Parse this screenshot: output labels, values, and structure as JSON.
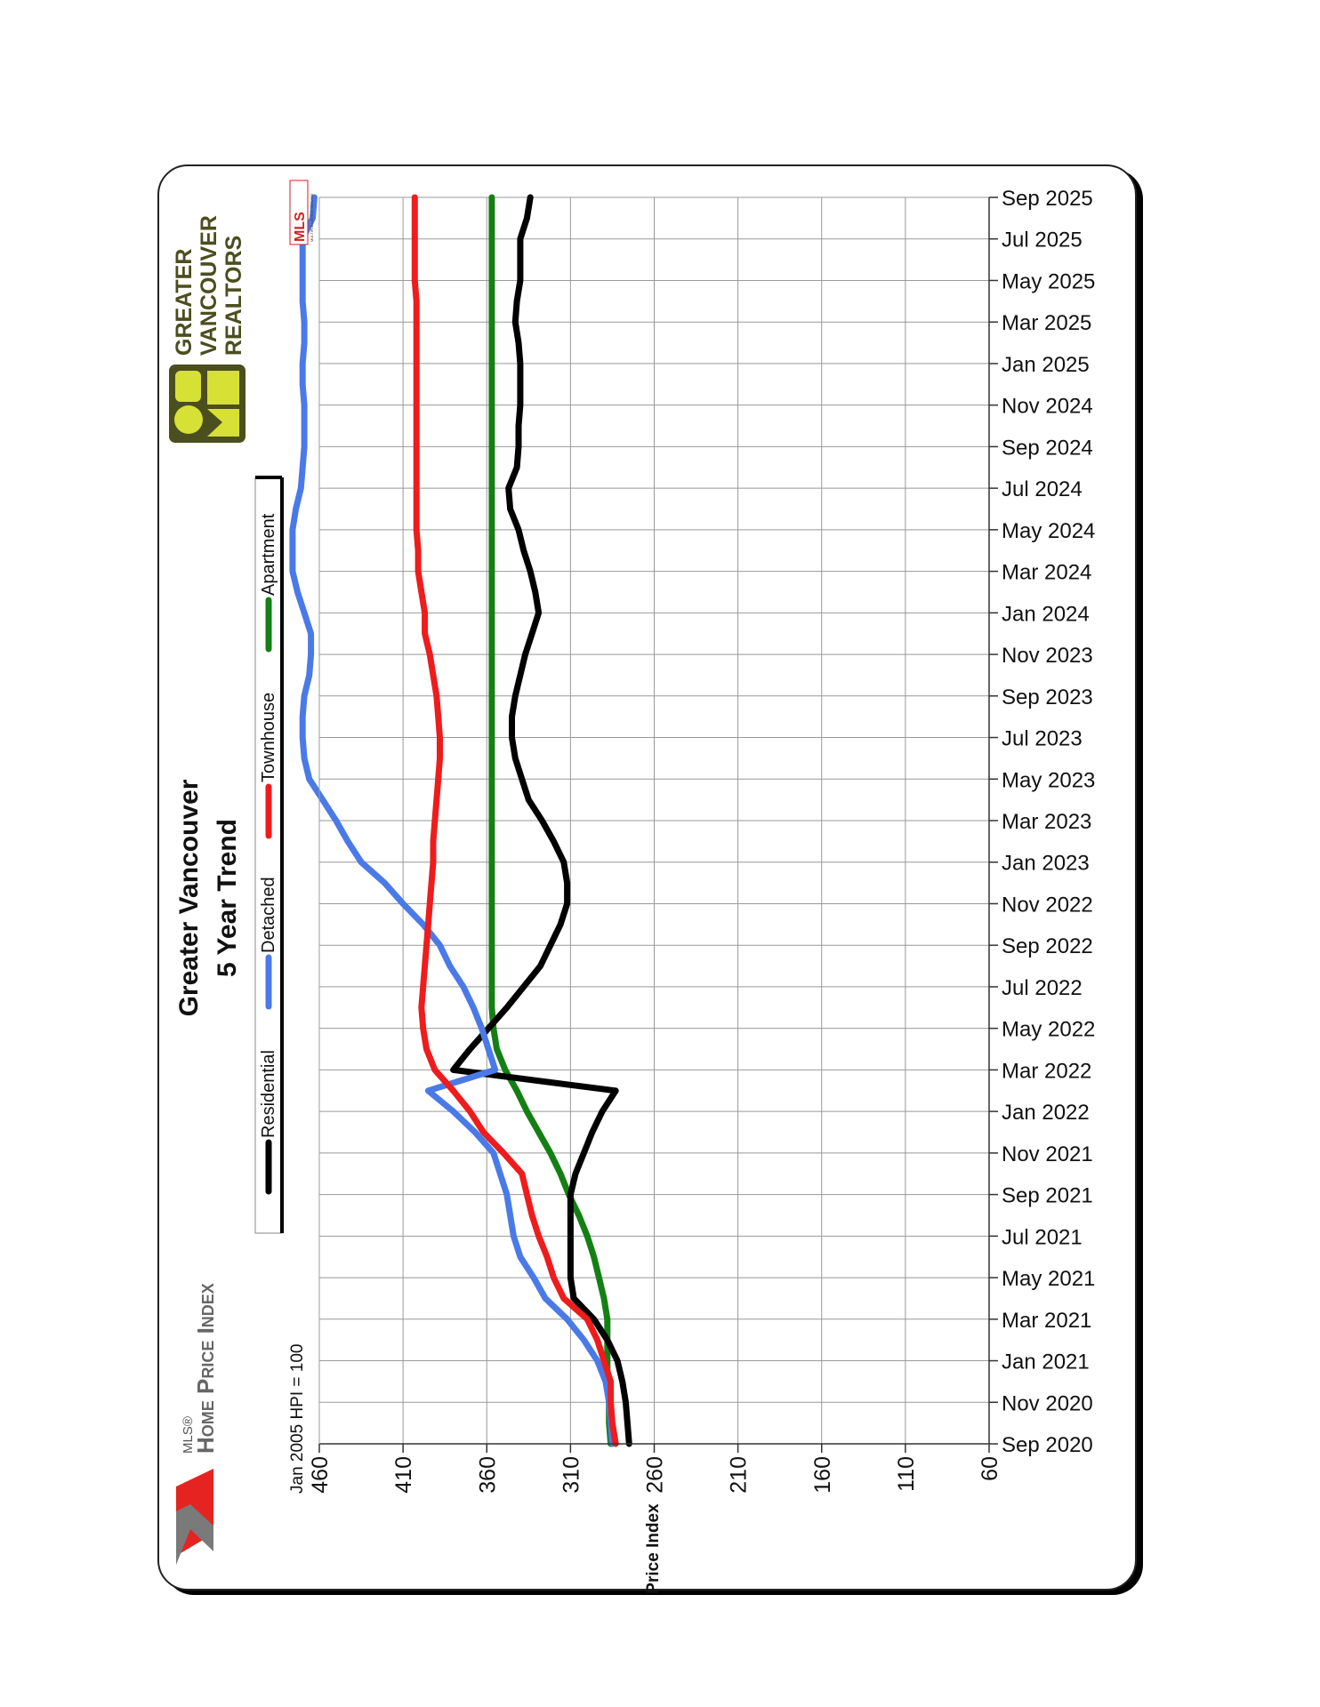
{
  "chart_data": {
    "type": "line",
    "title": "Greater Vancouver",
    "subtitle": "5 Year Trend",
    "ylabel": "Price Index",
    "base_note": "Jan 2005 HPI = 100",
    "ylim": [
      60,
      460
    ],
    "yticks": [
      "460",
      "410",
      "360",
      "310",
      "260",
      "210",
      "160",
      "110",
      "60"
    ],
    "x_labels": [
      "Sep 2025",
      "Jul 2025",
      "May 2025",
      "Mar 2025",
      "Jan 2025",
      "Nov 2024",
      "Sep 2024",
      "Jul 2024",
      "May 2024",
      "Mar 2024",
      "Jan 2024",
      "Nov 2023",
      "Sep 2023",
      "Jul 2023",
      "May 2023",
      "Mar 2023",
      "Jan 2023",
      "Nov 2022",
      "Sep 2022",
      "Jul 2022",
      "May 2022",
      "Mar 2022",
      "Jan 2022",
      "Nov 2021",
      "Sep 2021",
      "Jul 2021",
      "May 2021",
      "Mar 2021",
      "Jan 2021",
      "Nov 2020",
      "Sep 2020"
    ],
    "x": [
      "Sep 2020",
      "Oct 2020",
      "Nov 2020",
      "Dec 2020",
      "Jan 2021",
      "Feb 2021",
      "Mar 2021",
      "Apr 2021",
      "May 2021",
      "Jun 2021",
      "Jul 2021",
      "Aug 2021",
      "Sep 2021",
      "Oct 2021",
      "Nov 2021",
      "Dec 2021",
      "Jan 2022",
      "Feb 2022",
      "Mar 2022",
      "Apr 2022",
      "May 2022",
      "Jun 2022",
      "Jul 2022",
      "Aug 2022",
      "Sep 2022",
      "Oct 2022",
      "Nov 2022",
      "Dec 2022",
      "Jan 2023",
      "Feb 2023",
      "Mar 2023",
      "Apr 2023",
      "May 2023",
      "Jun 2023",
      "Jul 2023",
      "Aug 2023",
      "Sep 2023",
      "Oct 2023",
      "Nov 2023",
      "Dec 2023",
      "Jan 2024",
      "Feb 2024",
      "Mar 2024",
      "Apr 2024",
      "May 2024",
      "Jun 2024",
      "Jul 2024",
      "Aug 2024",
      "Sep 2024",
      "Oct 2024",
      "Nov 2024",
      "Dec 2024",
      "Jan 2025",
      "Feb 2025",
      "Mar 2025",
      "Apr 2025",
      "May 2025",
      "Jun 2025",
      "Jul 2025",
      "Aug 2025",
      "Sep 2025"
    ],
    "legend": [
      "Residential",
      "Detached",
      "Townhouse",
      "Apartment"
    ],
    "grid": true,
    "series": [
      {
        "name": "Residential",
        "color": "#000000",
        "values": [
          275,
          276,
          277,
          279,
          282,
          288,
          296,
          308,
          310,
          310,
          310,
          310,
          310,
          307,
          302,
          297,
          291,
          283,
          380,
          370,
          359,
          348,
          338,
          328,
          322,
          316,
          312,
          312,
          314,
          320,
          327,
          335,
          339,
          343,
          345,
          345,
          343,
          340,
          337,
          333,
          329,
          331,
          334,
          338,
          341,
          346,
          347,
          342,
          341,
          341,
          340,
          340,
          340,
          341,
          343,
          342,
          340,
          340,
          340,
          336,
          334
        ]
      },
      {
        "name": "Detached",
        "color": "#4a7ae8",
        "values": [
          285,
          286,
          287,
          289,
          294,
          302,
          312,
          325,
          332,
          340,
          344,
          346,
          348,
          352,
          356,
          367,
          380,
          395,
          355,
          359,
          363,
          368,
          374,
          382,
          388,
          398,
          410,
          421,
          435,
          443,
          450,
          458,
          466,
          469,
          470,
          470,
          469,
          466,
          465,
          465,
          469,
          473,
          476,
          476,
          476,
          474,
          471,
          470,
          469,
          469,
          469,
          470,
          470,
          469,
          469,
          470,
          470,
          470,
          470,
          464,
          463
        ]
      },
      {
        "name": "Townhouse",
        "color": "#ee1c1c",
        "values": [
          283,
          285,
          286,
          286,
          290,
          294,
          300,
          314,
          320,
          324,
          329,
          333,
          336,
          339,
          350,
          362,
          370,
          380,
          391,
          396,
          398,
          399,
          398,
          397,
          396,
          395,
          394,
          393,
          392,
          392,
          391,
          390,
          389,
          388,
          388,
          389,
          390,
          392,
          394,
          397,
          397,
          399,
          401,
          401,
          402,
          402,
          402,
          402,
          402,
          402,
          402,
          402,
          402,
          402,
          402,
          402,
          403,
          403,
          403,
          403,
          403
        ]
      },
      {
        "name": "Apartment",
        "color": "#148014",
        "values": [
          286,
          287,
          287,
          288,
          288,
          288,
          288,
          290,
          293,
          296,
          300,
          305,
          311,
          316,
          322,
          329,
          336,
          342,
          349,
          354,
          356,
          357,
          357,
          357,
          357,
          357,
          357,
          357,
          357,
          357,
          357,
          357,
          357,
          357,
          357,
          357,
          357,
          357,
          357,
          357,
          357,
          357,
          357,
          357,
          357,
          357,
          357,
          357,
          357,
          357,
          357,
          357,
          357,
          357,
          357,
          357,
          357,
          357,
          357,
          357,
          357
        ]
      }
    ]
  },
  "legend_labels": {
    "residential": "Residential",
    "detached": "Detached",
    "townhouse": "Townhouse",
    "apartment": "Apartment"
  },
  "branding": {
    "mls_small": "MLS®",
    "hpi_name": "Home Price Index",
    "org_line1": "GREATER",
    "org_line2": "VANCOUVER",
    "org_line3": "REALTORS",
    "mls_badge": "MLS",
    "mls_badge_sub": "MULTIPLE LISTING SERVICE"
  }
}
